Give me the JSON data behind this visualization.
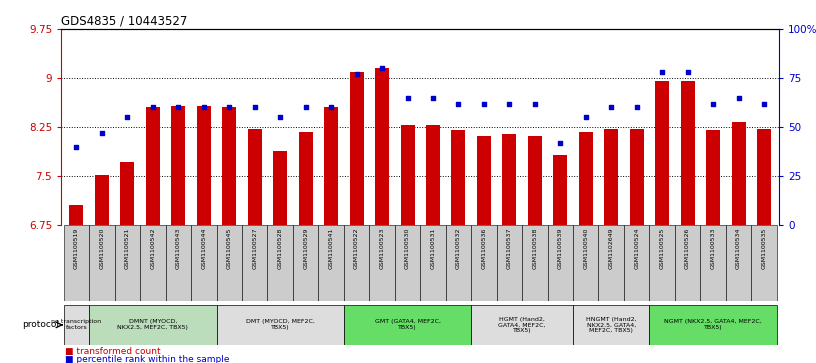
{
  "title": "GDS4835 / 10443527",
  "samples": [
    "GSM1100519",
    "GSM1100520",
    "GSM1100521",
    "GSM1100542",
    "GSM1100543",
    "GSM1100544",
    "GSM1100545",
    "GSM1100527",
    "GSM1100528",
    "GSM1100529",
    "GSM1100541",
    "GSM1100522",
    "GSM1100523",
    "GSM1100530",
    "GSM1100531",
    "GSM1100532",
    "GSM1100536",
    "GSM1100537",
    "GSM1100538",
    "GSM1100539",
    "GSM1100540",
    "GSM1102649",
    "GSM1100524",
    "GSM1100525",
    "GSM1100526",
    "GSM1100533",
    "GSM1100534",
    "GSM1100535"
  ],
  "bar_values": [
    7.05,
    7.52,
    7.72,
    8.55,
    8.57,
    8.57,
    8.55,
    8.22,
    7.88,
    8.18,
    8.55,
    9.1,
    9.15,
    8.28,
    8.28,
    8.2,
    8.12,
    8.15,
    8.12,
    7.82,
    8.18,
    8.22,
    8.22,
    8.96,
    8.95,
    8.2,
    8.32,
    8.22
  ],
  "dot_values": [
    40,
    47,
    55,
    60,
    60,
    60,
    60,
    60,
    55,
    60,
    60,
    77,
    80,
    65,
    65,
    62,
    62,
    62,
    62,
    42,
    55,
    60,
    60,
    78,
    78,
    62,
    65,
    62
  ],
  "ylim_left": [
    6.75,
    9.75
  ],
  "ylim_right": [
    0,
    100
  ],
  "yticks_left": [
    6.75,
    7.5,
    8.25,
    9.0,
    9.75
  ],
  "yticks_right": [
    0,
    25,
    50,
    75,
    100
  ],
  "ytick_labels_left": [
    "6.75",
    "7.5",
    "8.25",
    "9",
    "9.75"
  ],
  "ytick_labels_right": [
    "0",
    "25",
    "50",
    "75",
    "100%"
  ],
  "bar_color": "#CC0000",
  "dot_color": "#0000CC",
  "bg_color": "#FFFFFF",
  "protocols": [
    {
      "label": "no transcription\nfactors",
      "start": 0,
      "end": 1,
      "color": "#DDDDDD"
    },
    {
      "label": "DMNT (MYOCD,\nNKX2.5, MEF2C, TBX5)",
      "start": 1,
      "end": 6,
      "color": "#BBDDBB"
    },
    {
      "label": "DMT (MYOCD, MEF2C,\nTBX5)",
      "start": 6,
      "end": 11,
      "color": "#DDDDDD"
    },
    {
      "label": "GMT (GATA4, MEF2C,\nTBX5)",
      "start": 11,
      "end": 16,
      "color": "#66DD66"
    },
    {
      "label": "HGMT (Hand2,\nGATA4, MEF2C,\nTBX5)",
      "start": 16,
      "end": 20,
      "color": "#DDDDDD"
    },
    {
      "label": "HNGMT (Hand2,\nNKX2.5, GATA4,\nMEF2C, TBX5)",
      "start": 20,
      "end": 23,
      "color": "#DDDDDD"
    },
    {
      "label": "NGMT (NKX2.5, GATA4, MEF2C,\nTBX5)",
      "start": 23,
      "end": 28,
      "color": "#66DD66"
    }
  ]
}
